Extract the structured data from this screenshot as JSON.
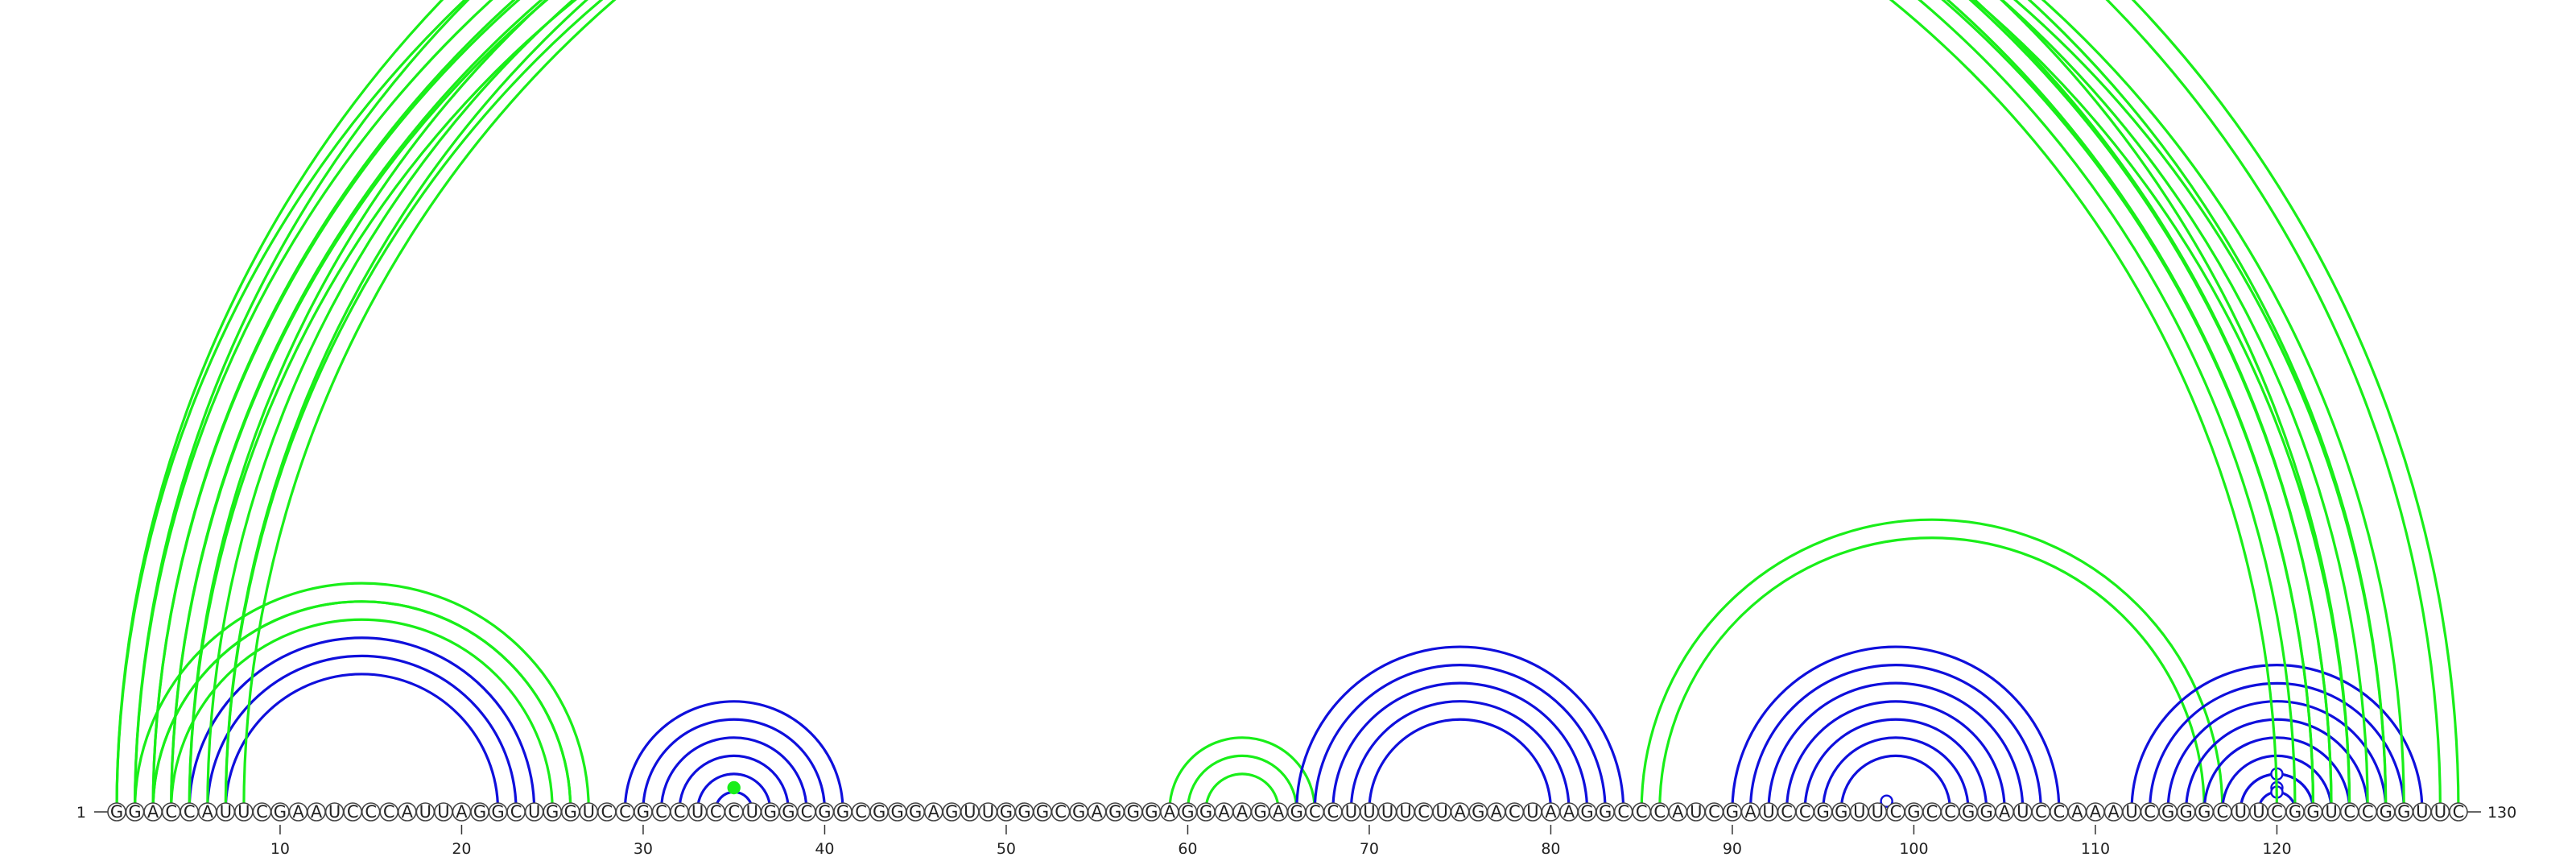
{
  "sequence": "GGACCAUUCGAAUCCCAUUAGGCUGGUCCGCCUCCUGGCGGCGGGAGUUGGGCGAGGGAGGAAGAGCCUUUUCUAGACUAAGGCCCAUCGAUCCGGUUCGCCGGAUCCAAAUCGGGCUUCGGUCCGGUUC",
  "length": 130,
  "start_label": "1",
  "end_label": "130",
  "axis_ticks": [
    10,
    20,
    30,
    40,
    50,
    60,
    70,
    80,
    90,
    100,
    110,
    120
  ],
  "colors": {
    "blue": "#0f0fdc",
    "green": "#19ee19"
  },
  "helices": [
    {
      "color": "blue",
      "i": 5,
      "j": 24,
      "n": 3
    },
    {
      "color": "green",
      "i": 4,
      "j": 25,
      "n": 1
    },
    {
      "color": "green",
      "i": 3,
      "j": 26,
      "n": 1
    },
    {
      "color": "green",
      "i": 2,
      "j": 27,
      "n": 2
    },
    {
      "color": "blue",
      "i": 29,
      "j": 41,
      "n": 5
    },
    {
      "color": "blue",
      "i": 34,
      "j": 36,
      "n": 1
    },
    {
      "color": "green",
      "i": 35,
      "j": 35,
      "n": 1,
      "dot": "filled"
    },
    {
      "color": "green",
      "i": 59,
      "j": 67,
      "n": 1
    },
    {
      "color": "green",
      "i": 60,
      "j": 66,
      "n": 2
    },
    {
      "color": "blue",
      "i": 66,
      "j": 84,
      "n": 5
    },
    {
      "color": "green",
      "i": 85,
      "j": 117,
      "n": 2
    },
    {
      "color": "blue",
      "i": 90,
      "j": 108,
      "n": 7
    },
    {
      "color": "blue",
      "i": 98,
      "j": 99,
      "n": 1,
      "dot": "open"
    },
    {
      "color": "blue",
      "i": 112,
      "j": 128,
      "n": 7
    },
    {
      "color": "blue",
      "i": 120,
      "j": 120,
      "n": 1,
      "dot": "open"
    },
    {
      "color": "blue",
      "i": 119,
      "j": 121,
      "n": 1,
      "dot": "open"
    },
    {
      "color": "blue",
      "i": 118,
      "j": 122,
      "n": 1,
      "dot": "open"
    },
    {
      "color": "green",
      "i": 1,
      "j": 124,
      "n": 5
    },
    {
      "color": "green",
      "i": 3,
      "j": 123,
      "n": 2
    },
    {
      "color": "green",
      "i": 5,
      "j": 126,
      "n": 3
    },
    {
      "color": "green",
      "i": 7,
      "j": 127,
      "n": 2
    },
    {
      "color": "green",
      "i": 1,
      "j": 130,
      "n": 2,
      "dot": "open"
    }
  ]
}
